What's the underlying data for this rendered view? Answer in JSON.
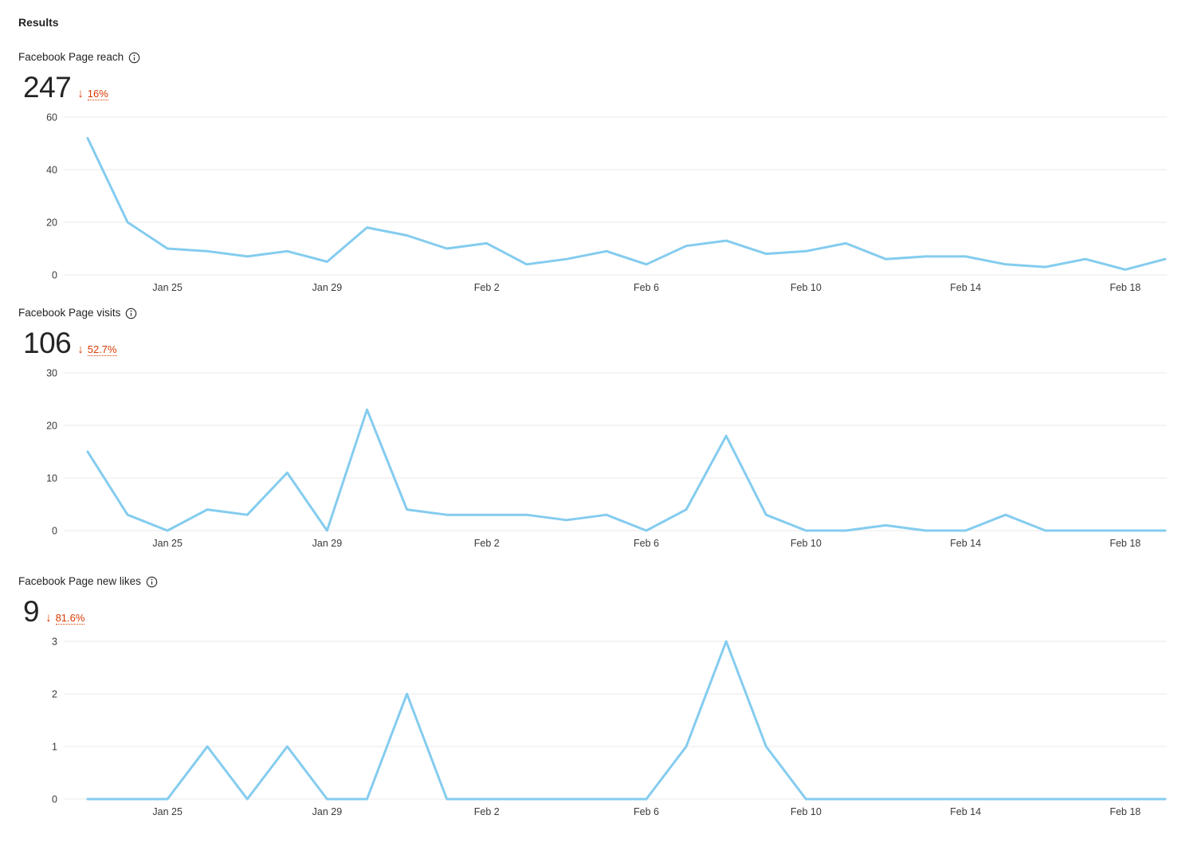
{
  "page_title": "Results",
  "colors": {
    "line": "#84CCEF",
    "grid": "#E8E8E8",
    "text_primary": "#252423",
    "axis_text": "#3B3A39",
    "negative": "#D83B01"
  },
  "chart_data": [
    {
      "type": "line",
      "title": "Facebook Page reach",
      "metric_total": "247",
      "trend": {
        "direction": "down",
        "arrow": "↓",
        "percent": "16%"
      },
      "ylim": [
        0,
        60
      ],
      "yticks": [
        60,
        40,
        20,
        0
      ],
      "xticks": [
        {
          "index": 2,
          "label": "Jan 25"
        },
        {
          "index": 6,
          "label": "Jan 29"
        },
        {
          "index": 10,
          "label": "Feb 2"
        },
        {
          "index": 14,
          "label": "Feb 6"
        },
        {
          "index": 18,
          "label": "Feb 10"
        },
        {
          "index": 22,
          "label": "Feb 14"
        },
        {
          "index": 26,
          "label": "Feb 18"
        }
      ],
      "values": [
        52,
        20,
        10,
        9,
        7,
        9,
        5,
        18,
        15,
        10,
        12,
        4,
        6,
        9,
        4,
        11,
        13,
        8,
        9,
        12,
        6,
        7,
        7,
        4,
        3,
        6,
        2,
        6
      ],
      "legend": "none",
      "grid": "horizontal"
    },
    {
      "type": "line",
      "title": "Facebook Page visits",
      "metric_total": "106",
      "trend": {
        "direction": "down",
        "arrow": "↓",
        "percent": "52.7%"
      },
      "ylim": [
        0,
        30
      ],
      "yticks": [
        30,
        20,
        10,
        0
      ],
      "xticks": [
        {
          "index": 2,
          "label": "Jan 25"
        },
        {
          "index": 6,
          "label": "Jan 29"
        },
        {
          "index": 10,
          "label": "Feb 2"
        },
        {
          "index": 14,
          "label": "Feb 6"
        },
        {
          "index": 18,
          "label": "Feb 10"
        },
        {
          "index": 22,
          "label": "Feb 14"
        },
        {
          "index": 26,
          "label": "Feb 18"
        }
      ],
      "values": [
        15,
        3,
        0,
        4,
        3,
        11,
        0,
        23,
        4,
        3,
        3,
        3,
        2,
        3,
        0,
        4,
        18,
        3,
        0,
        0,
        1,
        0,
        0,
        3,
        0,
        0,
        0,
        0
      ],
      "legend": "none",
      "grid": "horizontal"
    },
    {
      "type": "line",
      "title": "Facebook Page new likes",
      "metric_total": "9",
      "trend": {
        "direction": "down",
        "arrow": "↓",
        "percent": "81.6%"
      },
      "ylim": [
        0,
        3
      ],
      "yticks": [
        3,
        2,
        1,
        0
      ],
      "xticks": [
        {
          "index": 2,
          "label": "Jan 25"
        },
        {
          "index": 6,
          "label": "Jan 29"
        },
        {
          "index": 10,
          "label": "Feb 2"
        },
        {
          "index": 14,
          "label": "Feb 6"
        },
        {
          "index": 18,
          "label": "Feb 10"
        },
        {
          "index": 22,
          "label": "Feb 14"
        },
        {
          "index": 26,
          "label": "Feb 18"
        }
      ],
      "values": [
        0,
        0,
        0,
        1,
        0,
        1,
        0,
        0,
        2,
        0,
        0,
        0,
        0,
        0,
        0,
        1,
        3,
        1,
        0,
        0,
        0,
        0,
        0,
        0,
        0,
        0,
        0,
        0
      ],
      "legend": "none",
      "grid": "horizontal"
    }
  ]
}
